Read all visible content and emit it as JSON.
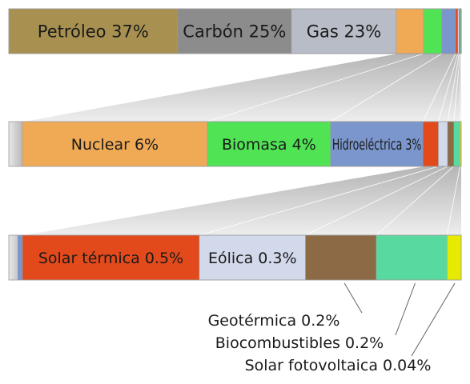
{
  "chart_data": {
    "type": "bar",
    "title": "",
    "levels": [
      {
        "segments": [
          {
            "label": "Petróleo 37%",
            "value": 37,
            "color": "#a89150"
          },
          {
            "label": "Carbón 25%",
            "value": 25,
            "color": "#8c8c8c"
          },
          {
            "label": "Gas 23%",
            "value": 23,
            "color": "#b8bcc6"
          },
          {
            "label": "",
            "value": 6,
            "color": "#f0aa55"
          },
          {
            "label": "",
            "value": 4,
            "color": "#50e354"
          },
          {
            "label": "",
            "value": 3,
            "color": "#7b96cc"
          },
          {
            "label": "",
            "value": 0.5,
            "color": "#e24a1c"
          },
          {
            "label": "",
            "value": 0.3,
            "color": "#d2d9ea"
          },
          {
            "label": "",
            "value": 0.2,
            "color": "#8b6a45"
          },
          {
            "label": "",
            "value": 0.2,
            "color": "#58d9a0"
          },
          {
            "label": "",
            "value": 0.04,
            "color": "#e6ea00"
          }
        ]
      },
      {
        "segments": [
          {
            "label": "Nuclear 6%",
            "value": 6,
            "color": "#f0aa55"
          },
          {
            "label": "Biomasa 4%",
            "value": 4,
            "color": "#50e354"
          },
          {
            "label": "Hidroeléctrica 3%",
            "value": 3,
            "color": "#7b96cc"
          },
          {
            "label": "",
            "value": 0.5,
            "color": "#e24a1c"
          },
          {
            "label": "",
            "value": 0.3,
            "color": "#d2d9ea"
          },
          {
            "label": "",
            "value": 0.2,
            "color": "#8b6a45"
          },
          {
            "label": "",
            "value": 0.2,
            "color": "#58d9a0"
          },
          {
            "label": "",
            "value": 0.04,
            "color": "#e6ea00"
          }
        ]
      },
      {
        "segments": [
          {
            "label": "Solar térmica 0.5%",
            "value": 0.5,
            "color": "#e24a1c"
          },
          {
            "label": "Eólica 0.3%",
            "value": 0.3,
            "color": "#d2d9ea"
          },
          {
            "label": "",
            "value": 0.2,
            "color": "#8b6a45"
          },
          {
            "label": "",
            "value": 0.2,
            "color": "#58d9a0"
          },
          {
            "label": "",
            "value": 0.04,
            "color": "#e6ea00"
          }
        ]
      }
    ],
    "callouts": [
      "Geotérmica 0.2%",
      "Biocombustibles 0.2%",
      "Solar fotovoltaica 0.04%"
    ]
  }
}
